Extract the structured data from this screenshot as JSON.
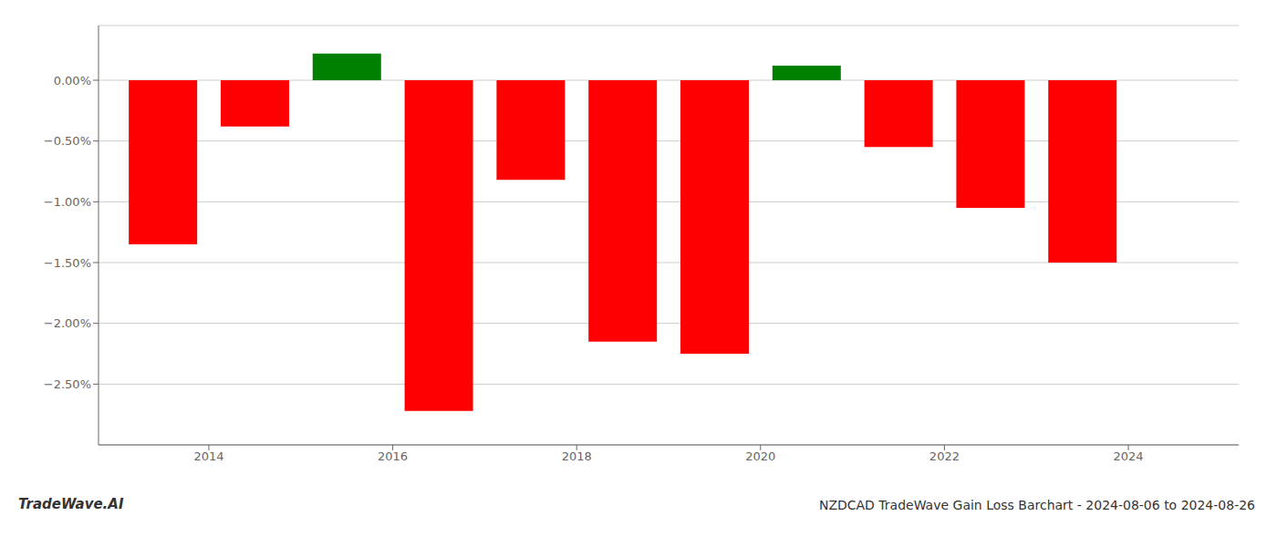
{
  "chart_data": {
    "type": "bar",
    "title": "NZDCAD TradeWave Gain Loss Barchart - 2024-08-06 to 2024-08-26",
    "annotations": [
      "TradeWave.AI"
    ],
    "x": [
      2013.5,
      2014.5,
      2015.5,
      2016.5,
      2017.5,
      2018.5,
      2019.5,
      2020.5,
      2021.5,
      2022.5,
      2023.5
    ],
    "values": [
      -1.35,
      -0.38,
      0.22,
      -2.72,
      -0.82,
      -2.15,
      -2.25,
      0.12,
      -0.55,
      -1.05,
      -1.5
    ],
    "colors": [
      "#ff0000",
      "#ff0000",
      "#008000",
      "#ff0000",
      "#ff0000",
      "#ff0000",
      "#ff0000",
      "#008000",
      "#ff0000",
      "#ff0000",
      "#ff0000"
    ],
    "xlim": [
      2012.8,
      2025.2
    ],
    "ylim": [
      -3.0,
      0.45
    ],
    "xticks": [
      2014,
      2016,
      2018,
      2020,
      2022,
      2024
    ],
    "yticks": [
      {
        "value": 0.0,
        "label": "0.00%"
      },
      {
        "value": -0.5,
        "label": "−0.50%"
      },
      {
        "value": -1.0,
        "label": "−1.00%"
      },
      {
        "value": -1.5,
        "label": "−1.50%"
      },
      {
        "value": -2.0,
        "label": "−2.00%"
      },
      {
        "value": -2.5,
        "label": "−2.50%"
      }
    ],
    "grid": true
  }
}
